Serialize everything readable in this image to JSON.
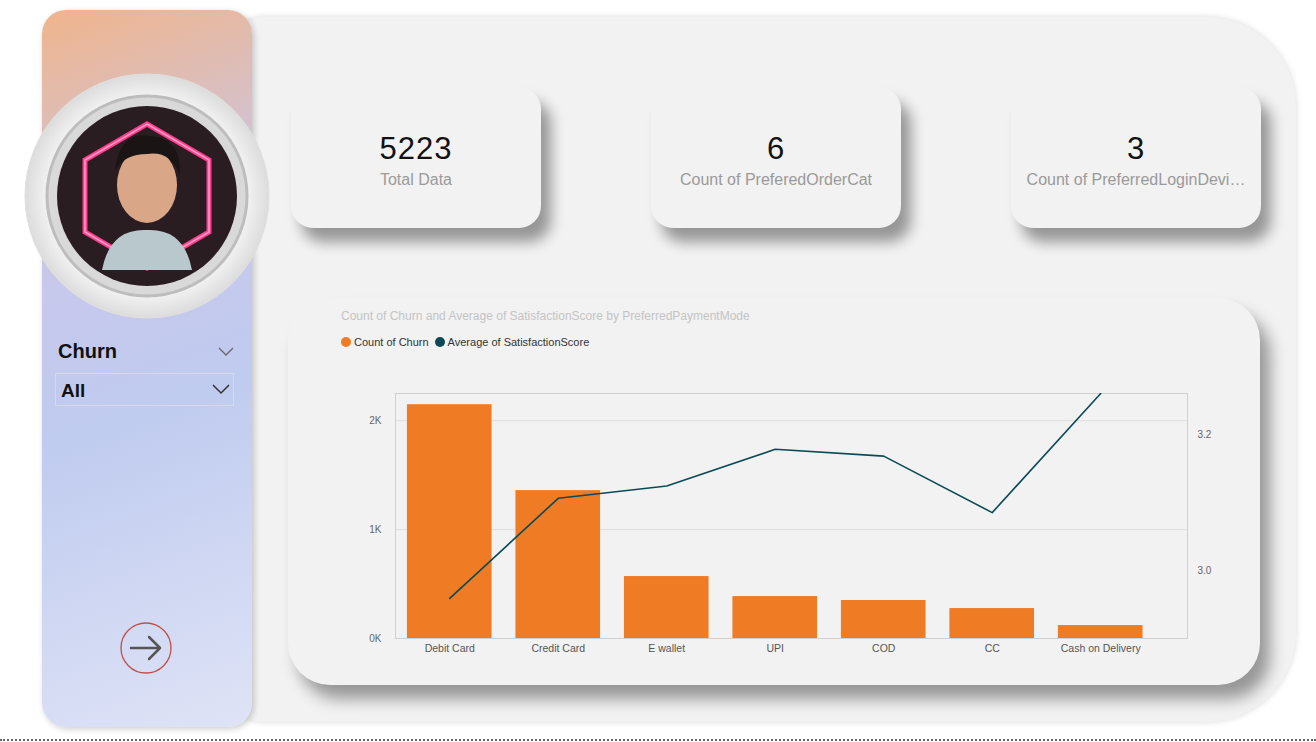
{
  "cards": [
    {
      "value": 5223,
      "label": "Total Data"
    },
    {
      "value": 6,
      "label": "Count of PreferedOrderCat"
    },
    {
      "value": 3,
      "label": "Count of PreferredLoginDevi…"
    }
  ],
  "slicer": {
    "label": "Churn",
    "selection": "All"
  },
  "chart_data": {
    "type": "combo",
    "title": "Count of Churn and Average of SatisfactionScore by PreferredPaymentMode",
    "categories": [
      "Debit Card",
      "Credit Card",
      "E wallet",
      "UPI",
      "COD",
      "CC",
      "Cash on Delivery"
    ],
    "series": [
      {
        "name": "Count of Churn",
        "type": "bar",
        "color": "#f07b25",
        "values": [
          2147,
          1358,
          569,
          385,
          349,
          275,
          119
        ]
      },
      {
        "name": "Average of SatisfactionScore",
        "type": "line",
        "axis": "y2",
        "color": "#0b4a55",
        "values": [
          2.959,
          3.106,
          3.124,
          3.178,
          3.168,
          3.085,
          3.26
        ]
      }
    ],
    "ylim": [
      0,
      2250
    ],
    "yticks": [
      {
        "value": 0,
        "label": "0K"
      },
      {
        "value": 1000,
        "label": "1K"
      },
      {
        "value": 2000,
        "label": "2K"
      }
    ],
    "y2lim": [
      2.9,
      3.26
    ],
    "y2ticks": [
      {
        "value": 3,
        "label": "3.0"
      },
      3.2
    ],
    "grid": true,
    "legend": "top-left"
  }
}
